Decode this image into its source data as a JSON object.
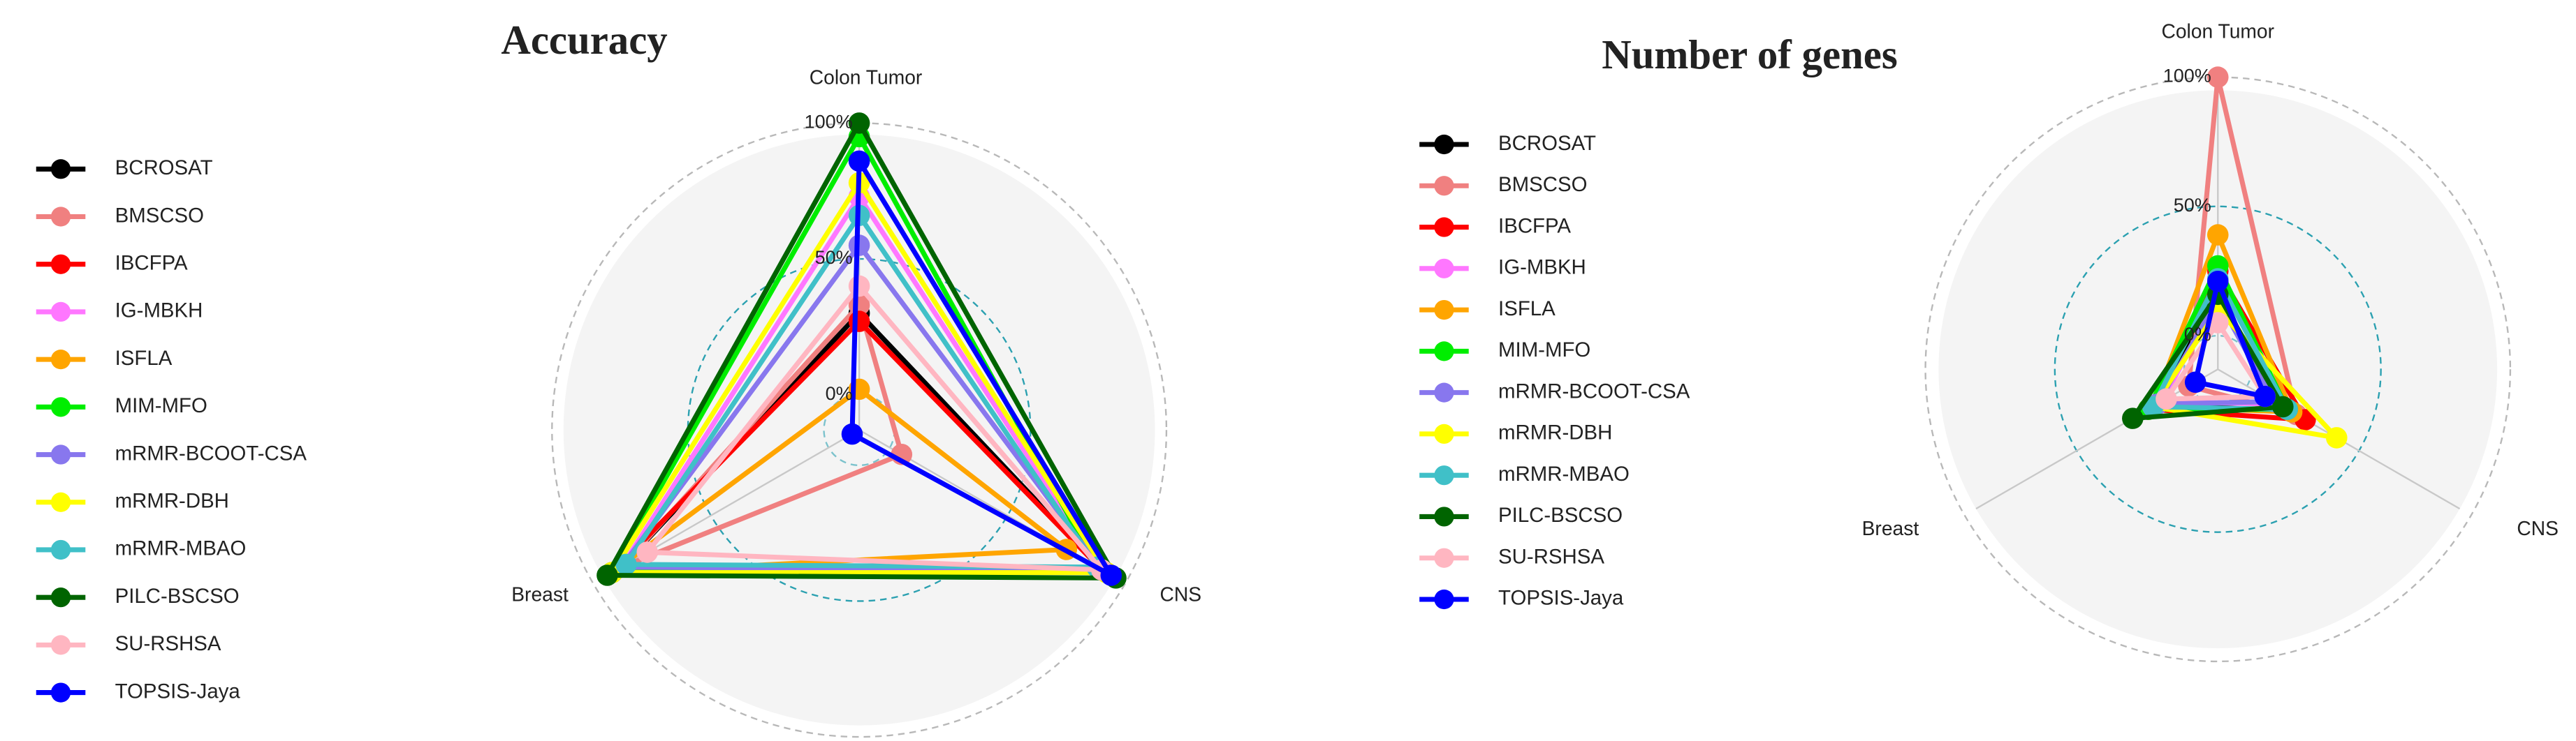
{
  "chart_data": [
    {
      "type": "radar",
      "title": "Accuracy",
      "categories": [
        "Colon Tumor",
        "CNS",
        "Breast"
      ],
      "rlim": [
        -13,
        100
      ],
      "rticks": [
        {
          "value": 0,
          "label": "0%"
        },
        {
          "value": 50,
          "label": "50%"
        },
        {
          "value": 100,
          "label": "100%"
        }
      ],
      "series": [
        {
          "name": "BCROSAT",
          "color": "#000000",
          "values": [
            30,
            90,
            88
          ]
        },
        {
          "name": "BMSCSO",
          "color": "#f08080",
          "values": [
            33,
            5,
            88
          ]
        },
        {
          "name": "IBCFPA",
          "color": "#ff0000",
          "values": [
            27,
            90,
            92
          ]
        },
        {
          "name": "IG-MBKH",
          "color": "#ff77ff",
          "values": [
            73,
            90,
            88
          ]
        },
        {
          "name": "ISFLA",
          "color": "#ffa500",
          "values": [
            2,
            75,
            92
          ]
        },
        {
          "name": "MIM-MFO",
          "color": "#00ee00",
          "values": [
            95,
            88,
            92
          ]
        },
        {
          "name": "mRMR-BCOOT-CSA",
          "color": "#8877ee",
          "values": [
            55,
            90,
            88
          ]
        },
        {
          "name": "mRMR-DBH",
          "color": "#ffff00",
          "values": [
            78,
            92,
            92
          ]
        },
        {
          "name": "mRMR-MBAO",
          "color": "#40c0c8",
          "values": [
            66,
            88,
            86
          ]
        },
        {
          "name": "PILC-BSCSO",
          "color": "#006400",
          "values": [
            100,
            96,
            94
          ]
        },
        {
          "name": "SU-RSHSA",
          "color": "#ffb6c1",
          "values": [
            40,
            90,
            77
          ]
        },
        {
          "name": "TOPSIS-Jaya",
          "color": "#0000ff",
          "values": [
            86,
            94,
            -10
          ]
        }
      ]
    },
    {
      "type": "radar",
      "title": "Number of genes",
      "categories": [
        "Colon Tumor",
        "CNS",
        "Breast"
      ],
      "rlim": [
        -13,
        100
      ],
      "rticks": [
        {
          "value": 0,
          "label": "0%"
        },
        {
          "value": 50,
          "label": "50%"
        },
        {
          "value": 100,
          "label": "100%"
        }
      ],
      "series": [
        {
          "name": "BCROSAT",
          "color": "#000000",
          "values": [
            18,
            12,
            16
          ]
        },
        {
          "name": "BMSCSO",
          "color": "#f08080",
          "values": [
            100,
            22,
            0
          ]
        },
        {
          "name": "IBCFPA",
          "color": "#ff0000",
          "values": [
            25,
            26,
            18
          ]
        },
        {
          "name": "IG-MBKH",
          "color": "#ff77ff",
          "values": [
            15,
            14,
            12
          ]
        },
        {
          "name": "ISFLA",
          "color": "#ffa500",
          "values": [
            39,
            20,
            16
          ]
        },
        {
          "name": "MIM-MFO",
          "color": "#00ee00",
          "values": [
            27,
            18,
            18
          ]
        },
        {
          "name": "mRMR-BCOOT-CSA",
          "color": "#8877ee",
          "values": [
            14,
            12,
            14
          ]
        },
        {
          "name": "mRMR-DBH",
          "color": "#ffff00",
          "values": [
            10,
            40,
            16
          ]
        },
        {
          "name": "mRMR-MBAO",
          "color": "#40c0c8",
          "values": [
            22,
            18,
            16
          ]
        },
        {
          "name": "PILC-BSCSO",
          "color": "#006400",
          "values": [
            16,
            16,
            25
          ]
        },
        {
          "name": "SU-RSHSA",
          "color": "#ffb6c1",
          "values": [
            5,
            8,
            10
          ]
        },
        {
          "name": "TOPSIS-Jaya",
          "color": "#0000ff",
          "values": [
            21,
            8,
            -3
          ]
        }
      ]
    }
  ]
}
